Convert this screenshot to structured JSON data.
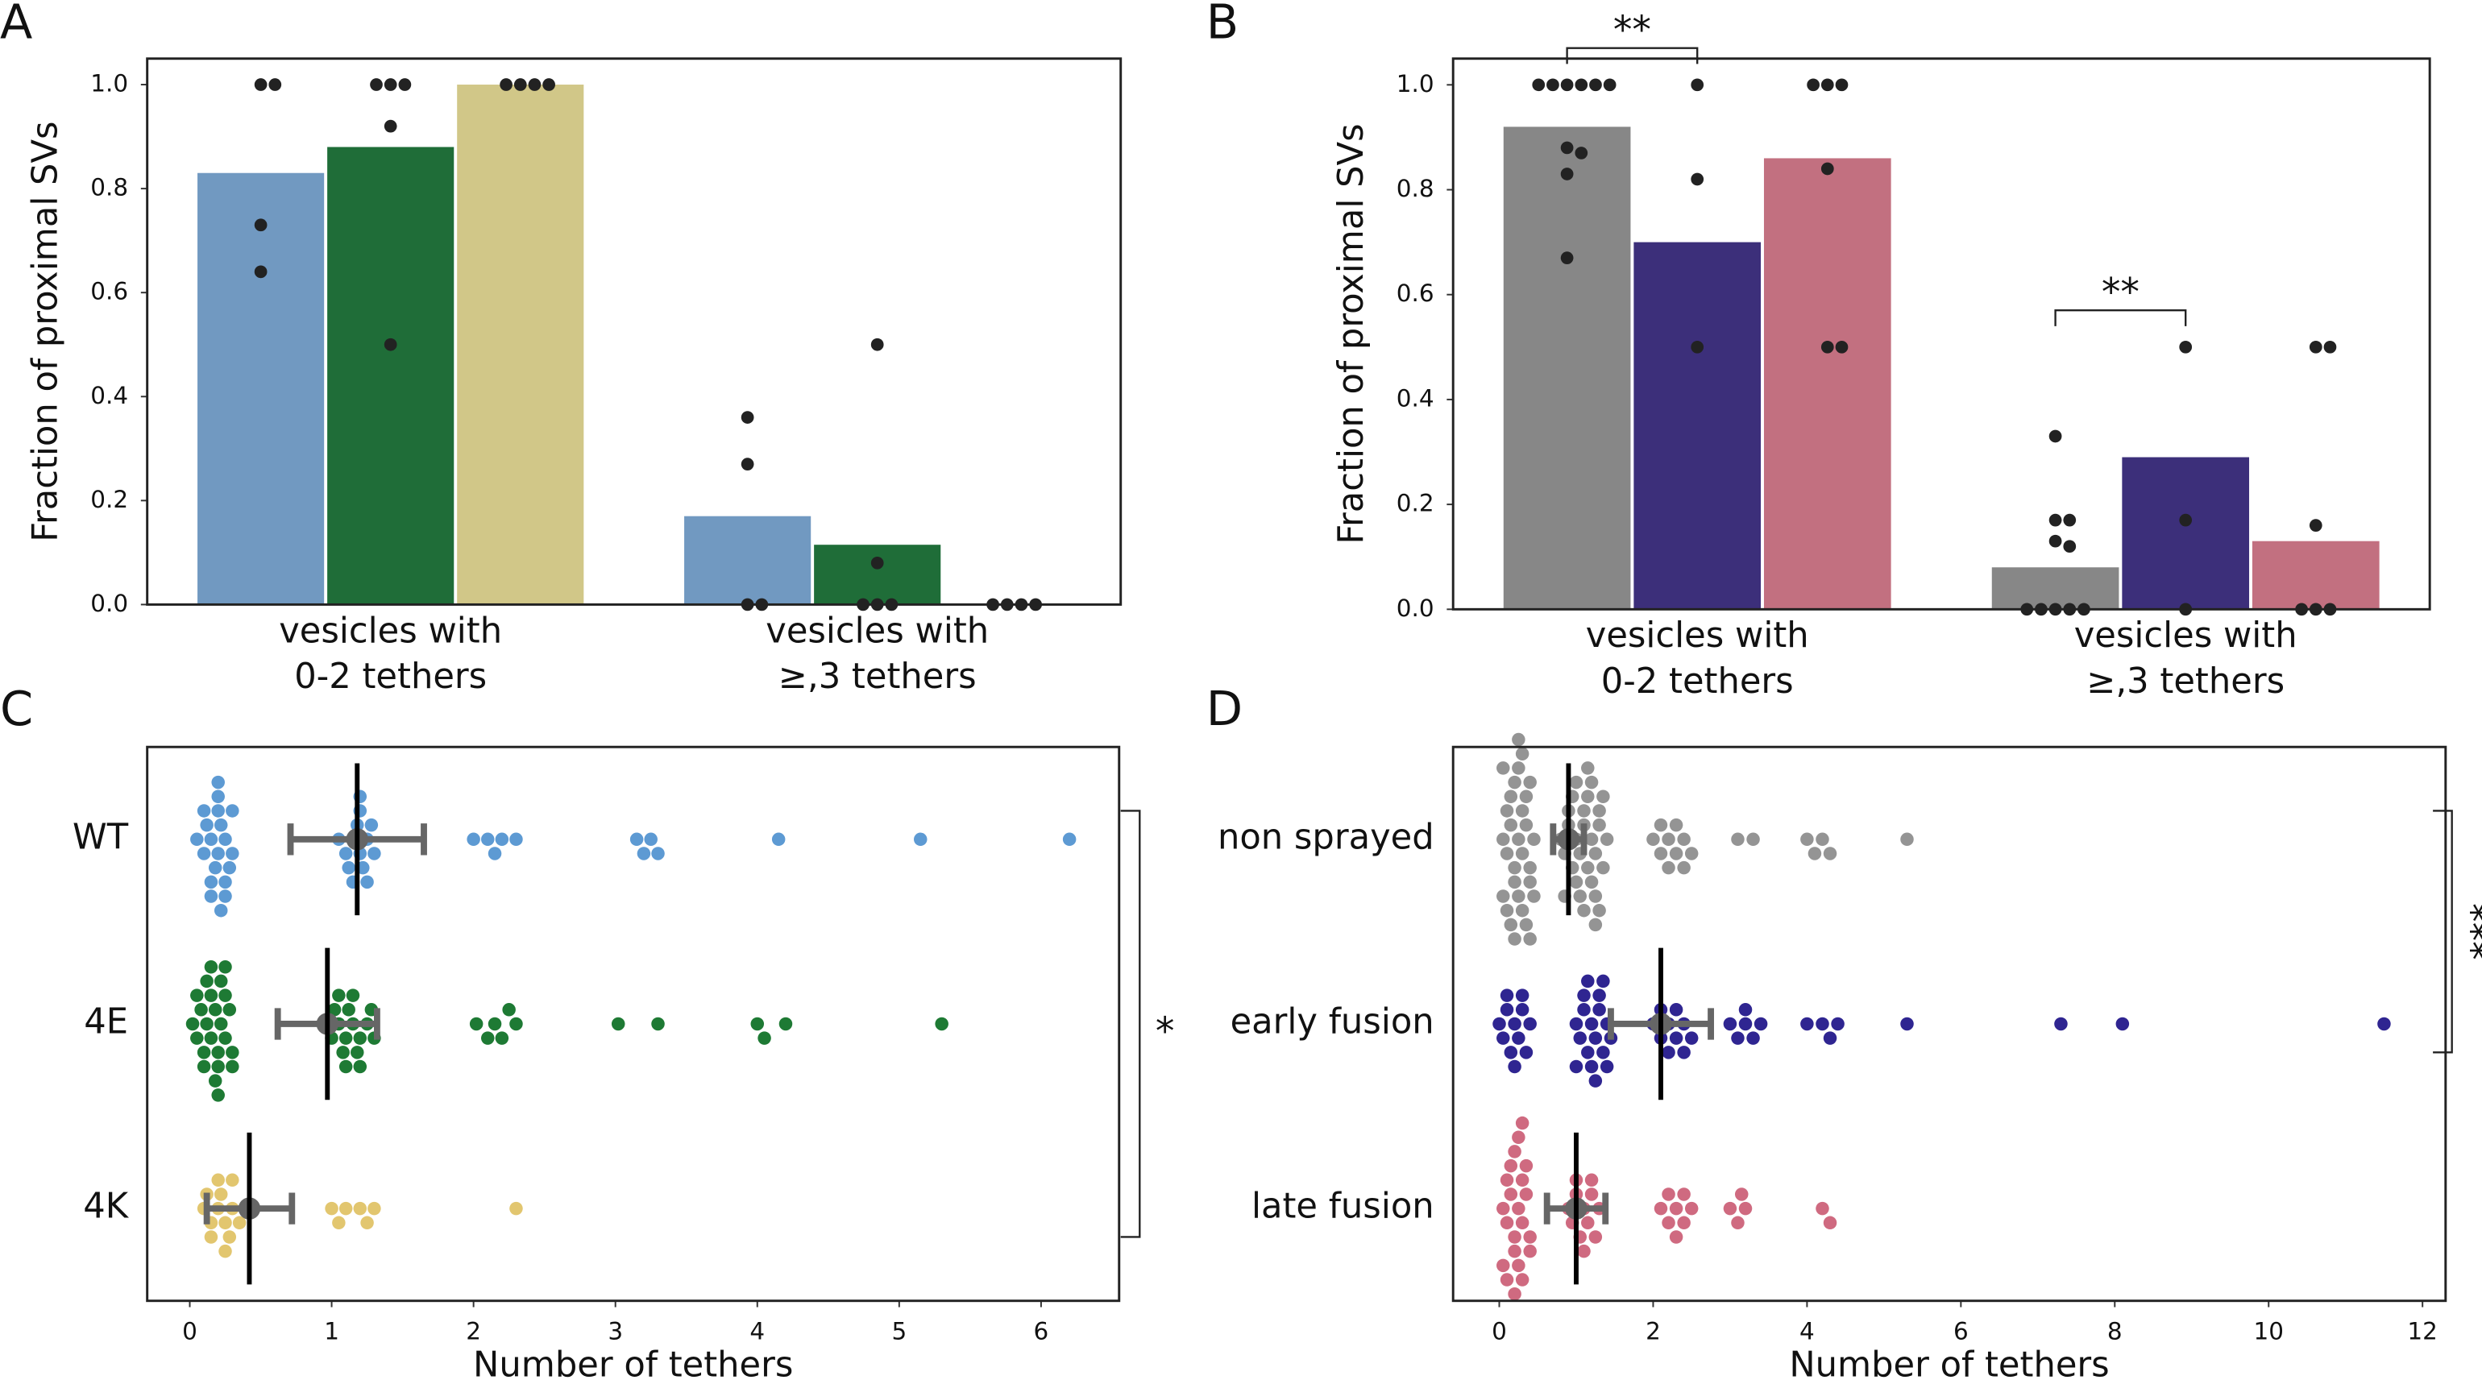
{
  "chart_data": [
    {
      "type": "bar",
      "panel_label": "A",
      "ylabel": "Fraction of proximal SVs",
      "categories": [
        [
          "vesicles with",
          "0-2 tethers"
        ],
        [
          "vesicles with",
          "≥,3 tethers"
        ]
      ],
      "ylim": [
        0,
        1.05
      ],
      "yticks": [
        {
          "value": 0,
          "label": "0.0"
        },
        0.2,
        0.4,
        0.6,
        0.8,
        {
          "value": 1,
          "label": "1.0"
        }
      ],
      "point_color": "#222222",
      "series": [
        {
          "color": "#7199c1",
          "values": [
            0.83,
            0.17
          ],
          "points": [
            [
              1,
              1,
              0.73,
              0.64
            ],
            [
              0.36,
              0.27,
              0,
              0
            ]
          ]
        },
        {
          "color": "#1f6d38",
          "values": [
            0.88,
            0.115
          ],
          "points": [
            [
              1,
              1,
              1,
              0.92,
              0.5
            ],
            [
              0.5,
              0.08,
              0,
              0,
              0
            ]
          ]
        },
        {
          "color": "#d1c788",
          "values": [
            1.0,
            0
          ],
          "points": [
            [
              1,
              1,
              1,
              1
            ],
            [
              0,
              0,
              0,
              0
            ]
          ]
        }
      ],
      "annotations": []
    },
    {
      "type": "bar",
      "panel_label": "B",
      "ylabel": "Fraction of proximal SVs",
      "categories": [
        [
          "vesicles with",
          "0-2 tethers"
        ],
        [
          "vesicles with",
          "≥,3 tethers"
        ]
      ],
      "ylim": [
        0,
        1.05
      ],
      "yticks": [
        {
          "value": 0,
          "label": "0.0"
        },
        0.2,
        0.4,
        0.6,
        0.8,
        {
          "value": 1,
          "label": "1.0"
        }
      ],
      "point_color": "#222222",
      "series": [
        {
          "color": "#878787",
          "values": [
            0.92,
            0.08
          ],
          "points": [
            [
              1,
              1,
              1,
              1,
              1,
              1,
              0.88,
              0.87,
              0.83,
              0.67
            ],
            [
              0.33,
              0.17,
              0.17,
              0.13,
              0.12,
              0,
              0,
              0,
              0,
              0
            ]
          ]
        },
        {
          "color": "#3c2f7a",
          "values": [
            0.7,
            0.29
          ],
          "points": [
            [
              1,
              0.82,
              0.5
            ],
            [
              0.5,
              0.17,
              0
            ]
          ]
        },
        {
          "color": "#c27080",
          "values": [
            0.86,
            0.13
          ],
          "points": [
            [
              1,
              1,
              1,
              0.84,
              0.5,
              0.5
            ],
            [
              0.5,
              0.5,
              0.16,
              0,
              0,
              0
            ]
          ]
        }
      ],
      "annotations": [
        {
          "text": "**"
        },
        {
          "text": "**"
        }
      ]
    },
    {
      "type": "swarm",
      "panel_label": "C",
      "xlabel": "Number of tethers",
      "categories": [
        "WT",
        "4E",
        "4K"
      ],
      "colors": [
        "#5d9ad3",
        "#1e7a34",
        "#e2c66f"
      ],
      "xlim": [
        -0.3,
        6.55
      ],
      "xticks": [
        0,
        1,
        2,
        3,
        4,
        5,
        6
      ],
      "means": [
        1.18,
        0.97,
        0.42
      ],
      "errors": [
        0.47,
        0.35,
        0.3
      ],
      "points": [
        [
          0.05,
          0.1,
          0.12,
          0.15,
          0.18,
          0.2,
          0.22,
          0.25,
          0.28,
          0.3,
          0.1,
          0.15,
          0.2,
          0.25,
          0.3,
          0.2,
          0.25,
          0.15,
          0.2,
          0.22,
          1.05,
          1.1,
          1.15,
          1.18,
          1.2,
          1.22,
          1.25,
          1.3,
          1.12,
          1.2,
          1.28,
          1.15,
          1.25,
          1.2,
          2.0,
          2.1,
          2.15,
          2.2,
          2.3,
          3.15,
          3.2,
          3.25,
          3.3,
          4.15,
          5.15,
          6.2
        ],
        [
          0.02,
          0.05,
          0.08,
          0.1,
          0.12,
          0.15,
          0.18,
          0.2,
          0.22,
          0.25,
          0.28,
          0.3,
          0.05,
          0.1,
          0.15,
          0.2,
          0.25,
          0.3,
          0.12,
          0.18,
          0.22,
          0.25,
          0.15,
          0.2,
          0.95,
          1.0,
          1.02,
          1.05,
          1.08,
          1.1,
          1.12,
          1.15,
          1.18,
          1.2,
          1.25,
          1.28,
          1.3,
          1.05,
          1.1,
          1.15,
          1.2,
          2.02,
          2.1,
          2.15,
          2.2,
          2.3,
          2.25,
          3.02,
          3.3,
          4.0,
          4.05,
          4.2,
          5.3
        ],
        [
          0.1,
          0.15,
          0.2,
          0.22,
          0.25,
          0.28,
          0.3,
          0.15,
          0.2,
          0.25,
          0.3,
          0.35,
          0.12,
          1.0,
          1.05,
          1.1,
          1.2,
          1.25,
          1.3,
          2.3
        ]
      ],
      "annotations": [
        {
          "text": "*"
        }
      ]
    },
    {
      "type": "swarm",
      "panel_label": "D",
      "xlabel": "Number of tethers",
      "categories": [
        "non sprayed",
        "early fusion",
        "late fusion"
      ],
      "colors": [
        "#949494",
        "#2f2591",
        "#cf6a80"
      ],
      "xlim": [
        -0.6,
        12.3
      ],
      "xticks": [
        0,
        2,
        4,
        6,
        8,
        10,
        12
      ],
      "means": [
        0.9,
        2.1,
        1.0
      ],
      "errors": [
        0.2,
        0.65,
        0.38
      ],
      "points": [
        [
          0.05,
          0.1,
          0.15,
          0.2,
          0.25,
          0.3,
          0.35,
          0.4,
          0.45,
          0.1,
          0.2,
          0.3,
          0.4,
          0.15,
          0.25,
          0.35,
          0.05,
          0.2,
          0.3,
          0.4,
          0.1,
          0.25,
          0.35,
          0.15,
          0.3,
          0.2,
          0.45,
          0.05,
          0.4,
          0.25,
          0.8,
          0.85,
          0.9,
          0.95,
          1.0,
          1.05,
          1.1,
          1.15,
          1.2,
          1.25,
          1.3,
          1.35,
          1.4,
          0.9,
          1.0,
          1.1,
          1.2,
          1.3,
          0.95,
          1.05,
          1.15,
          1.25,
          1.35,
          1.0,
          1.1,
          1.2,
          1.3,
          0.85,
          1.15,
          1.25,
          2.0,
          2.1,
          2.2,
          2.3,
          2.4,
          2.5,
          2.1,
          2.2,
          2.3,
          2.4,
          3.1,
          3.3,
          4.0,
          4.1,
          4.2,
          4.3,
          5.3
        ],
        [
          0.0,
          0.05,
          0.1,
          0.15,
          0.2,
          0.25,
          0.3,
          0.35,
          0.4,
          0.1,
          0.2,
          0.3,
          1.0,
          1.05,
          1.1,
          1.15,
          1.2,
          1.25,
          1.3,
          1.35,
          1.4,
          1.45,
          1.1,
          1.2,
          1.3,
          1.4,
          1.15,
          1.25,
          1.35,
          1.0,
          2.0,
          2.1,
          2.2,
          2.3,
          2.4,
          2.5,
          2.1,
          2.3,
          2.2,
          2.4,
          3.0,
          3.1,
          3.2,
          3.3,
          3.4,
          3.2,
          4.0,
          4.2,
          4.3,
          4.4,
          5.3,
          7.3,
          8.1,
          11.5
        ],
        [
          0.05,
          0.1,
          0.15,
          0.2,
          0.25,
          0.3,
          0.35,
          0.4,
          0.1,
          0.2,
          0.3,
          0.15,
          0.25,
          0.35,
          0.2,
          0.3,
          0.1,
          0.25,
          0.4,
          0.05,
          0.2,
          0.3,
          0.9,
          0.95,
          1.0,
          1.05,
          1.1,
          1.15,
          1.2,
          1.25,
          1.3,
          1.0,
          1.1,
          1.2,
          2.1,
          2.2,
          2.3,
          2.4,
          2.5,
          2.2,
          2.4,
          2.3,
          3.0,
          3.1,
          3.2,
          3.15,
          4.2,
          4.3
        ]
      ],
      "annotations": [
        {
          "text": "***"
        }
      ]
    }
  ]
}
